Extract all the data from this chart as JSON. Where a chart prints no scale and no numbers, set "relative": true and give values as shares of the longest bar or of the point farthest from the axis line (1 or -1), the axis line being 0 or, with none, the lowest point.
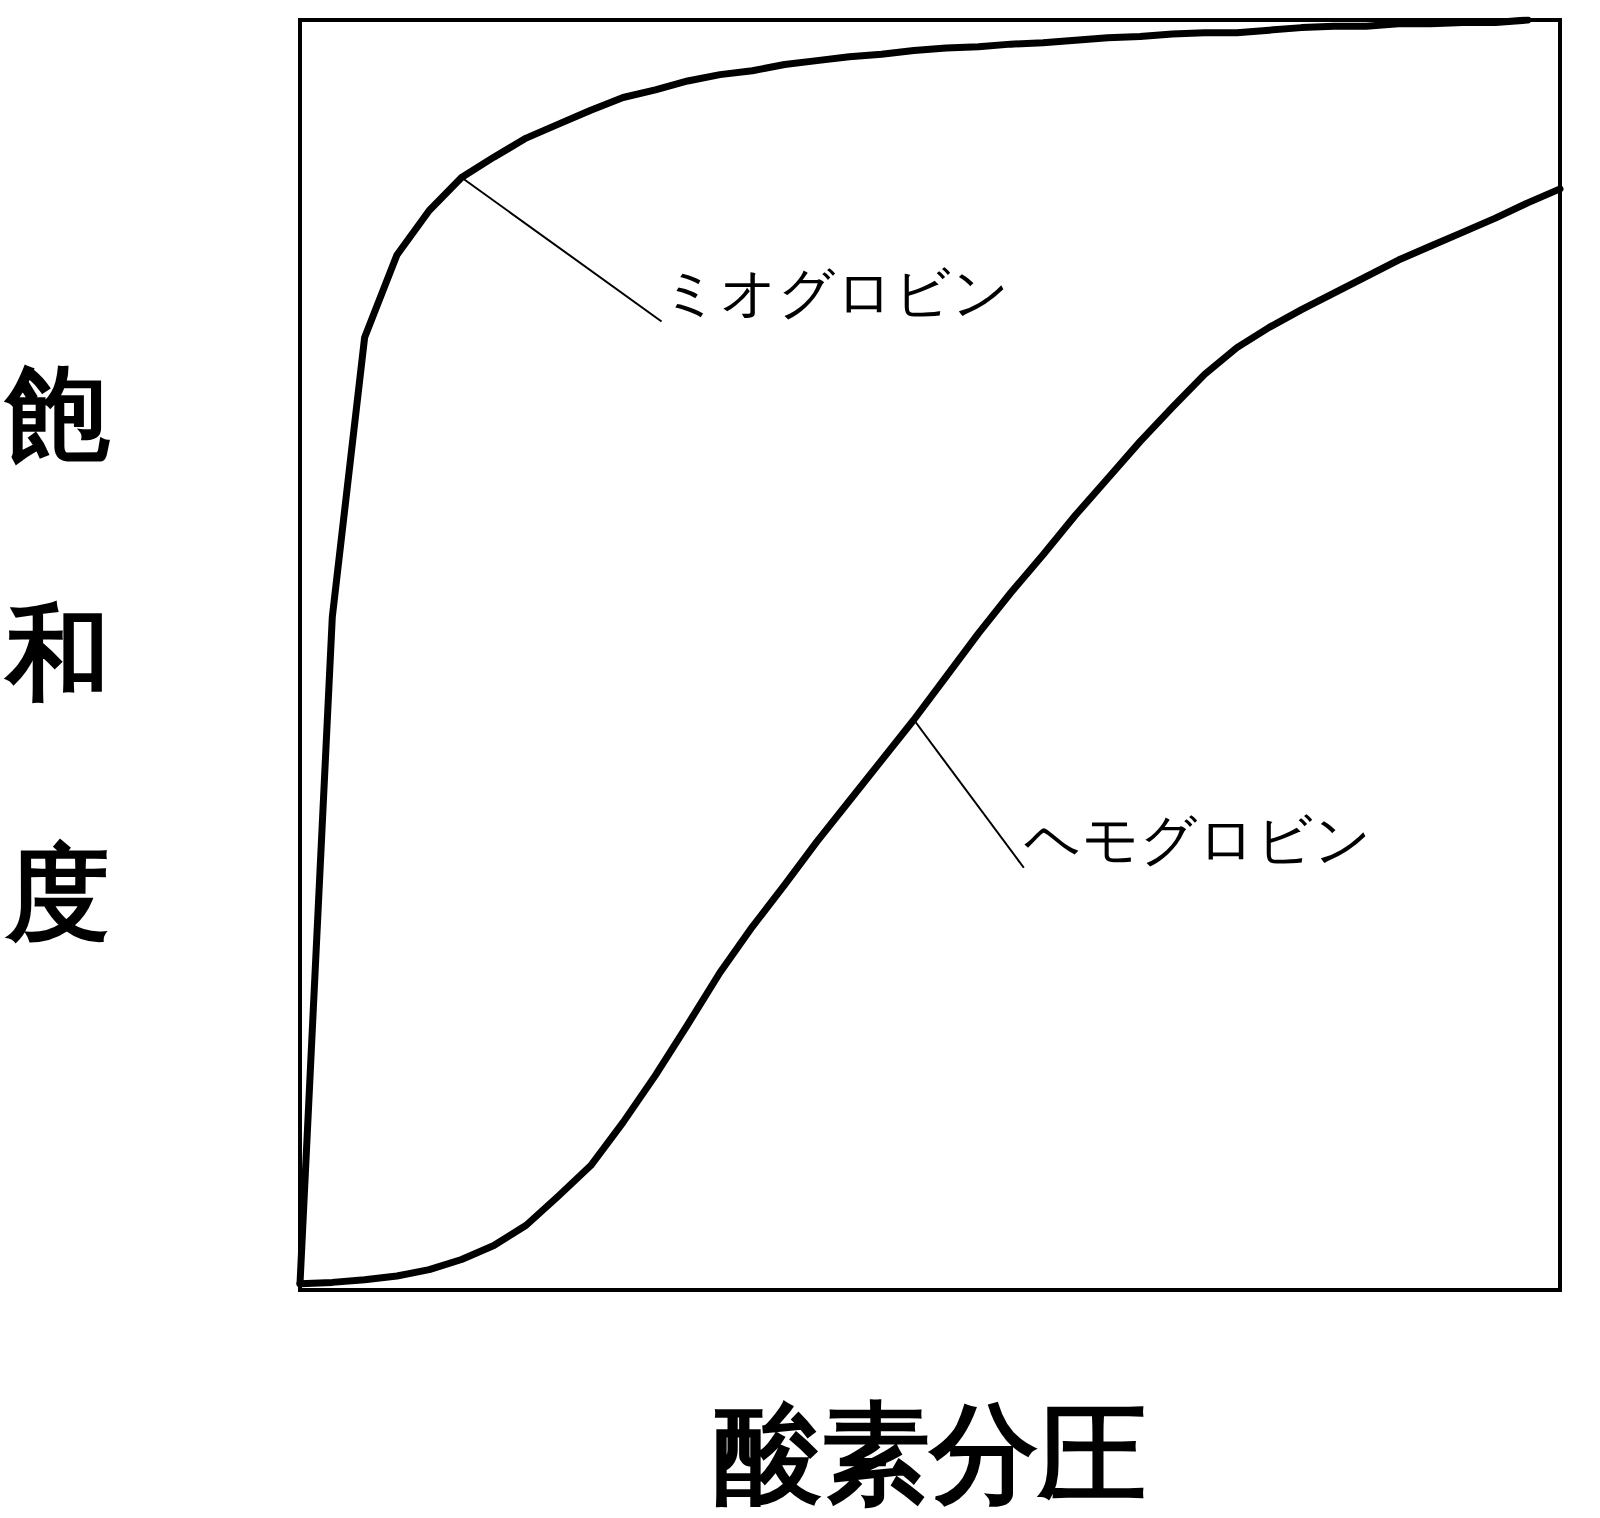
{
  "chart_data": {
    "type": "line",
    "relative": true,
    "xlabel": "酸素分圧",
    "ylabel": "飽和度",
    "grid": false,
    "legend": false,
    "marker": "none",
    "line_style": "solid",
    "categories": [
      null,
      null,
      null,
      null,
      null,
      null,
      null,
      null,
      null,
      null,
      null,
      null,
      null,
      null,
      null,
      null,
      null,
      null,
      null,
      null,
      null,
      null,
      null,
      null,
      null,
      null,
      null,
      null,
      null,
      null,
      null,
      null,
      null,
      null,
      null,
      null,
      null,
      null,
      null,
      null
    ],
    "series": [
      {
        "name": "ミオグロビン",
        "color": "#000000",
        "values": [
          0.005,
          0.53,
          0.75,
          0.815,
          0.85,
          0.876,
          0.892,
          0.907,
          0.918,
          0.929,
          0.939,
          0.945,
          0.952,
          0.957,
          0.96,
          0.965,
          0.968,
          0.971,
          0.973,
          0.976,
          0.978,
          0.979,
          0.981,
          0.982,
          0.984,
          0.986,
          0.987,
          0.989,
          0.99,
          0.99,
          0.992,
          0.994,
          0.995,
          0.995,
          0.997,
          0.997,
          0.998,
          0.998,
          1,
          null
        ]
      },
      {
        "name": "ヘモグロビン",
        "color": "#000000",
        "values": [
          0.005,
          0.006,
          0.008,
          0.011,
          0.016,
          0.024,
          0.035,
          0.051,
          0.074,
          0.098,
          0.132,
          0.169,
          0.209,
          0.25,
          0.286,
          0.319,
          0.353,
          0.385,
          0.417,
          0.449,
          0.483,
          0.517,
          0.549,
          0.579,
          0.61,
          0.639,
          0.668,
          0.695,
          0.721,
          0.742,
          0.758,
          0.772,
          0.785,
          0.798,
          0.811,
          0.822,
          0.833,
          0.844,
          0.856,
          0.867
        ]
      }
    ]
  }
}
